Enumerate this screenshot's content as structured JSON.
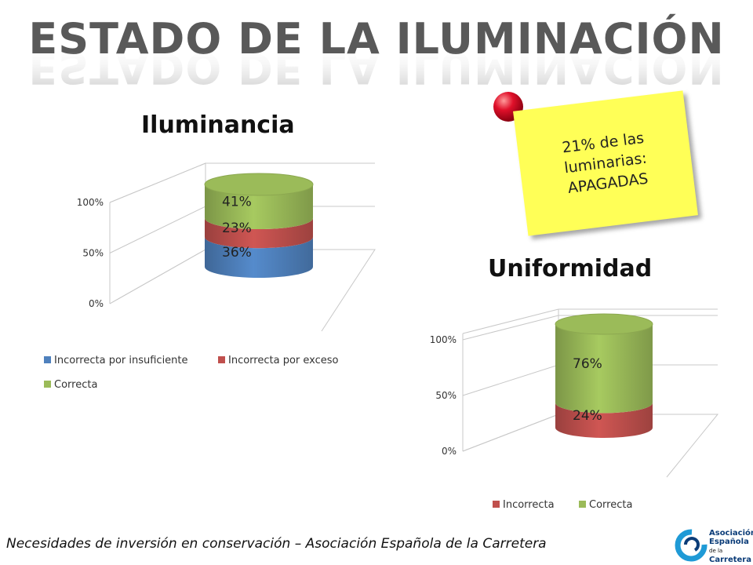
{
  "page_title": "ESTADO DE LA ILUMINACIÓN",
  "note": {
    "line1": "21% de las",
    "line2": "luminarias:",
    "line3": "APAGADAS"
  },
  "footer": "Necesidades de inversión en conservación – Asociación Española de la Carretera",
  "logo": {
    "w1": "Asociación",
    "w2": "Española",
    "w2b": "de la",
    "w3": "Carretera"
  },
  "colors": {
    "blue": "#4f81bd",
    "red": "#c0504d",
    "green": "#9bbb59"
  },
  "chart_data": [
    {
      "type": "bar",
      "title": "Iluminancia",
      "stacked": true,
      "y_ticks": [
        "0%",
        "50%",
        "100%"
      ],
      "ylim": [
        0,
        100
      ],
      "series": [
        {
          "name": "Incorrecta por insuficiente",
          "values": [
            36
          ],
          "label": "36%",
          "color": "#4f81bd"
        },
        {
          "name": "Incorrecta por exceso",
          "values": [
            23
          ],
          "label": "23%",
          "color": "#c0504d"
        },
        {
          "name": "Correcta",
          "values": [
            41
          ],
          "label": "41%",
          "color": "#9bbb59"
        }
      ],
      "legend": "bottom"
    },
    {
      "type": "bar",
      "title": "Uniformidad",
      "stacked": true,
      "y_ticks": [
        "0%",
        "50%",
        "100%"
      ],
      "ylim": [
        0,
        100
      ],
      "series": [
        {
          "name": "Incorrecta",
          "values": [
            24
          ],
          "label": "24%",
          "color": "#c0504d"
        },
        {
          "name": "Correcta",
          "values": [
            76
          ],
          "label": "76%",
          "color": "#9bbb59"
        }
      ],
      "legend": "bottom"
    }
  ]
}
